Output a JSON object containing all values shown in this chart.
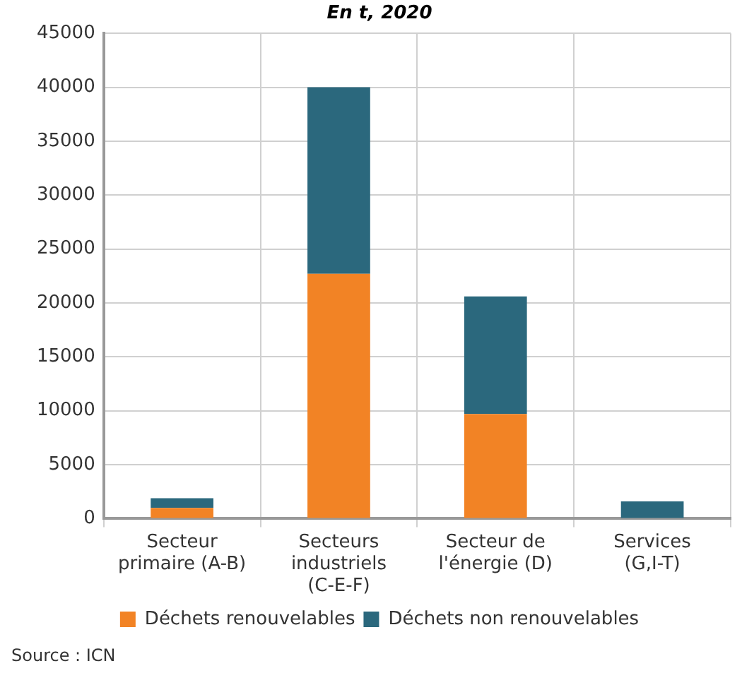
{
  "chart_data": {
    "type": "bar",
    "title": "En t, 2020",
    "categories": [
      "Secteur primaire (A-B)",
      "Secteurs industriels (C-E-F)",
      "Secteur de l'énergie (D)",
      "Services (G,I-T)"
    ],
    "series": [
      {
        "name": "Déchets renouvelables",
        "color": "#f28325",
        "values": [
          1000,
          22700,
          9700,
          0
        ]
      },
      {
        "name": "Déchets non renouvelables",
        "color": "#2b687d",
        "values": [
          900,
          17300,
          10900,
          1600
        ]
      }
    ],
    "stacked": true,
    "ylim": [
      0,
      45000
    ],
    "yticks": [
      0,
      5000,
      10000,
      15000,
      20000,
      25000,
      30000,
      35000,
      40000,
      45000
    ],
    "grid": true,
    "legend": "bottom",
    "annotations": [
      "Source : ICN"
    ]
  }
}
